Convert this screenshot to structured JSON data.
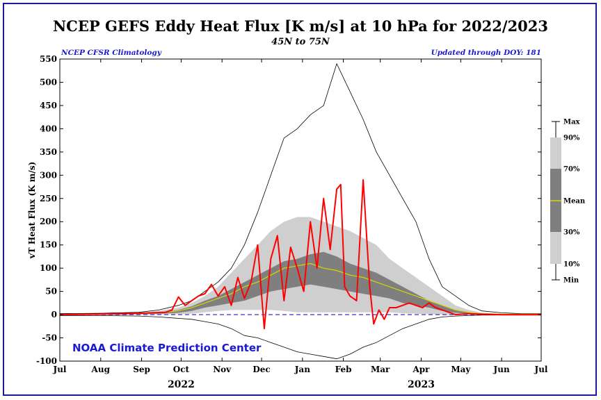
{
  "header": {
    "title": "NCEP GEFS Eddy Heat Flux [K m/s] at 10 hPa for 2022/2023",
    "subtitle": "45N to 75N",
    "left_note": "NCEP CFSR Climatology",
    "right_note": "Updated through DOY: 181",
    "credit": "NOAA Climate Prediction Center"
  },
  "colors": {
    "band_10_90": "#cfcfcf",
    "band_30_70": "#7f7f7f",
    "mean": "#d6d600",
    "minmax": "#000000",
    "observed": "#ff0000",
    "zero_line": "#2020c0",
    "text_blue": "#1a1ad0"
  },
  "legend": {
    "items": [
      "Max",
      "90%",
      "70%",
      "Mean",
      "30%",
      "10%",
      "Min"
    ]
  },
  "chart_data": {
    "type": "area",
    "ylabel": "vT Heat Flux (K m/s)",
    "ylim": [
      -100,
      550
    ],
    "yticks": [
      -100,
      -50,
      0,
      50,
      100,
      150,
      200,
      250,
      300,
      350,
      400,
      450,
      500,
      550
    ],
    "xlim": [
      0,
      365
    ],
    "month_labels": [
      "Jul",
      "Aug",
      "Sep",
      "Oct",
      "Nov",
      "Dec",
      "Jan",
      "Feb",
      "Mar",
      "Apr",
      "May",
      "Jun",
      "Jul"
    ],
    "month_days": [
      0,
      31,
      62,
      92,
      123,
      153,
      184,
      215,
      243,
      274,
      304,
      335,
      365
    ],
    "year_labels": [
      {
        "label": "2022",
        "day": 92
      },
      {
        "label": "2023",
        "day": 274
      }
    ],
    "climatology_days": [
      0,
      30,
      60,
      75,
      90,
      100,
      110,
      120,
      130,
      140,
      150,
      160,
      170,
      180,
      190,
      200,
      210,
      220,
      230,
      240,
      250,
      260,
      270,
      280,
      290,
      300,
      310,
      320,
      335,
      350,
      365
    ],
    "series": [
      {
        "name": "Max",
        "values": [
          2,
          3,
          5,
          10,
          20,
          30,
          50,
          70,
          100,
          150,
          220,
          300,
          380,
          400,
          430,
          450,
          540,
          480,
          420,
          350,
          300,
          250,
          200,
          120,
          60,
          40,
          20,
          8,
          4,
          2,
          2
        ]
      },
      {
        "name": "90%",
        "values": [
          1,
          2,
          4,
          8,
          15,
          25,
          40,
          60,
          90,
          120,
          150,
          180,
          200,
          210,
          210,
          200,
          190,
          180,
          165,
          150,
          120,
          100,
          80,
          60,
          40,
          20,
          10,
          4,
          2,
          1,
          1
        ]
      },
      {
        "name": "70%",
        "values": [
          1,
          1,
          2,
          5,
          10,
          18,
          30,
          40,
          55,
          70,
          85,
          100,
          115,
          120,
          130,
          135,
          125,
          110,
          100,
          90,
          75,
          60,
          45,
          30,
          20,
          10,
          5,
          2,
          1,
          1,
          1
        ]
      },
      {
        "name": "Mean",
        "values": [
          0.5,
          1,
          2,
          4,
          8,
          15,
          25,
          35,
          45,
          60,
          70,
          85,
          100,
          105,
          110,
          100,
          95,
          85,
          80,
          70,
          60,
          50,
          40,
          30,
          20,
          10,
          5,
          2,
          1,
          1,
          1
        ]
      },
      {
        "name": "30%",
        "values": [
          0,
          0,
          1,
          2,
          4,
          8,
          15,
          20,
          25,
          30,
          40,
          50,
          55,
          60,
          65,
          60,
          55,
          50,
          45,
          40,
          35,
          25,
          20,
          15,
          8,
          4,
          2,
          1,
          0,
          0,
          0
        ]
      },
      {
        "name": "10%",
        "values": [
          0,
          0,
          0,
          0,
          1,
          2,
          5,
          8,
          10,
          10,
          10,
          10,
          8,
          5,
          5,
          5,
          5,
          5,
          5,
          5,
          5,
          3,
          2,
          1,
          0,
          0,
          0,
          0,
          0,
          0,
          0
        ]
      },
      {
        "name": "Min",
        "values": [
          -2,
          -2,
          -3,
          -5,
          -8,
          -10,
          -15,
          -20,
          -30,
          -45,
          -50,
          -60,
          -70,
          -80,
          -85,
          -90,
          -95,
          -85,
          -70,
          -60,
          -45,
          -30,
          -20,
          -10,
          -5,
          -3,
          -2,
          -1,
          -1,
          -1,
          -1
        ]
      }
    ],
    "observed": {
      "x": [
        0,
        30,
        60,
        80,
        85,
        90,
        95,
        100,
        105,
        110,
        115,
        120,
        125,
        130,
        135,
        140,
        145,
        150,
        155,
        160,
        165,
        170,
        175,
        180,
        185,
        190,
        195,
        200,
        205,
        210,
        213,
        216,
        220,
        225,
        230,
        235,
        238,
        242,
        246,
        250,
        255,
        260,
        265,
        270,
        275,
        280,
        285,
        290,
        295,
        300,
        310,
        320,
        335,
        350,
        365
      ],
      "y": [
        0,
        1,
        3,
        5,
        10,
        38,
        20,
        30,
        40,
        45,
        65,
        40,
        60,
        20,
        80,
        35,
        70,
        150,
        -30,
        120,
        170,
        30,
        145,
        100,
        50,
        200,
        100,
        250,
        140,
        270,
        280,
        60,
        40,
        30,
        290,
        60,
        -20,
        10,
        -10,
        15,
        15,
        20,
        25,
        20,
        15,
        25,
        15,
        10,
        5,
        0,
        2,
        1,
        0,
        0,
        0
      ]
    }
  }
}
